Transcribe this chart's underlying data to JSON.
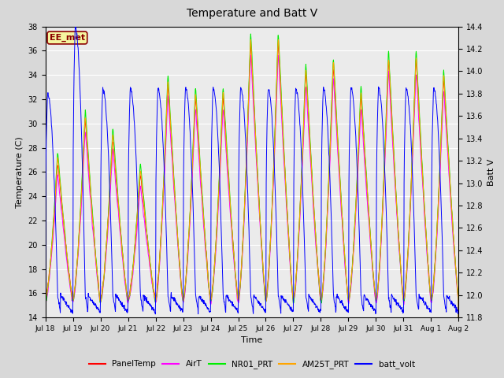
{
  "title": "Temperature and Batt V",
  "xlabel": "Time",
  "ylabel_left": "Temperature (C)",
  "ylabel_right": "Batt V",
  "ylim_left": [
    14,
    38
  ],
  "ylim_right": [
    11.8,
    14.4
  ],
  "yticks_left": [
    14,
    16,
    18,
    20,
    22,
    24,
    26,
    28,
    30,
    32,
    34,
    36,
    38
  ],
  "yticks_right": [
    11.8,
    12.0,
    12.2,
    12.4,
    12.6,
    12.8,
    13.0,
    13.2,
    13.4,
    13.6,
    13.8,
    14.0,
    14.2,
    14.4
  ],
  "xtick_labels": [
    "Jul 18",
    "Jul 19",
    "Jul 20",
    "Jul 21",
    "Jul 22",
    "Jul 23",
    "Jul 24",
    "Jul 25",
    "Jul 26",
    "Jul 27",
    "Jul 28",
    "Jul 29",
    "Jul 30",
    "Jul 31",
    "Aug 1",
    "Aug 2"
  ],
  "watermark": "EE_met",
  "watermark_color": "#8B0000",
  "watermark_bg": "#F5F5A0",
  "background_color": "#D8D8D8",
  "plot_bg_color": "#EBEBEB",
  "colors": {
    "PanelTemp": "#FF0000",
    "AirT": "#FF00FF",
    "NR01_PRT": "#00EE00",
    "AM25T_PRT": "#FFA500",
    "batt_volt": "#0000FF"
  },
  "legend_labels": [
    "PanelTemp",
    "AirT",
    "NR01_PRT",
    "AM25T_PRT",
    "batt_volt"
  ],
  "days": 15,
  "n_points_per_day": 96,
  "temp_base": 15.5,
  "temp_peaks": [
    27,
    30.5,
    29,
    26,
    33.5,
    32.5,
    32.5,
    37,
    37,
    34.5,
    35,
    32.5,
    35.5,
    35.5,
    34
  ],
  "batt_peak": [
    13.8,
    14.4,
    13.85,
    13.85,
    13.85,
    13.85,
    13.85,
    13.85,
    13.85,
    13.85,
    13.85,
    13.85,
    13.85,
    13.85,
    13.85
  ],
  "batt_min": 11.85,
  "batt_base": 12.0
}
